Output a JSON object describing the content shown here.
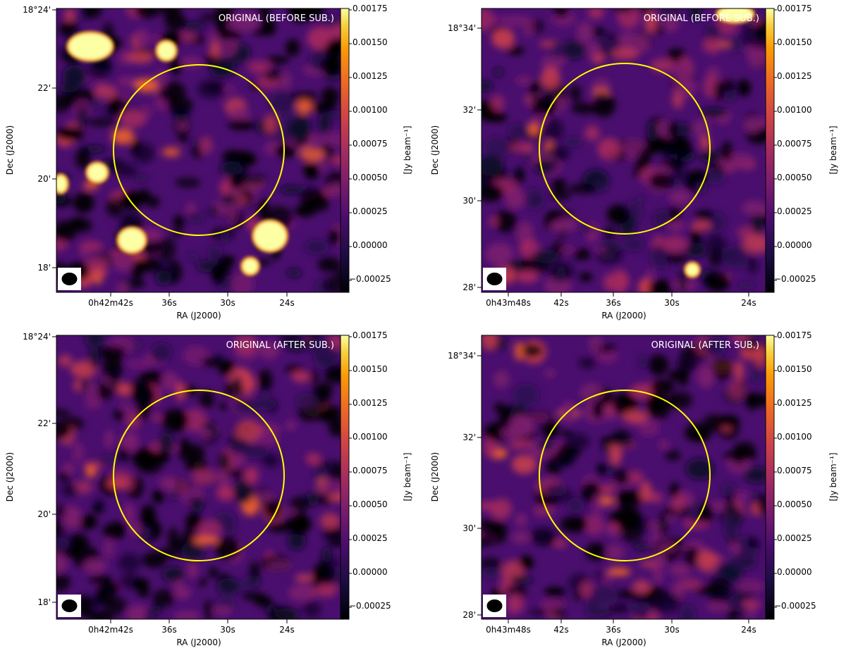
{
  "chart_data": [
    {
      "type": "heatmap",
      "label": "ORIGINAL (BEFORE SUB.)",
      "xlabel": "RA (J2000)",
      "ylabel": "Dec (J2000)",
      "x_ticks": [
        "0h42m42s",
        "36s",
        "30s",
        "24s"
      ],
      "y_ticks": [
        "18°24'",
        "22'",
        "20'",
        "18'"
      ],
      "colorbar": {
        "label": "[Jy beam⁻¹]",
        "range": [
          -0.00035,
          0.00175
        ],
        "ticks": [
          "0.00175",
          "0.00150",
          "0.00125",
          "0.00100",
          "0.00075",
          "0.00050",
          "0.00025",
          "0.00000",
          "−0.00025"
        ]
      },
      "colormap": "inferno",
      "circle_color": "#ffff00",
      "beam": "ellipse",
      "bright_sources": 7
    },
    {
      "type": "heatmap",
      "label": "ORIGINAL (BEFORE SUB.)",
      "xlabel": "RA (J2000)",
      "ylabel": "Dec (J2000)",
      "x_ticks": [
        "0h43m48s",
        "42s",
        "36s",
        "30s",
        "24s"
      ],
      "y_ticks": [
        "18°34'",
        "32'",
        "30'",
        "28'"
      ],
      "colorbar": {
        "label": "[Jy beam⁻¹]",
        "range": [
          -0.00035,
          0.00175
        ],
        "ticks": [
          "0.00175",
          "0.00150",
          "0.00125",
          "0.00100",
          "0.00075",
          "0.00050",
          "0.00025",
          "0.00000",
          "−0.00025"
        ]
      },
      "colormap": "inferno",
      "circle_color": "#ffff00",
      "beam": "ellipse",
      "bright_sources": 2
    },
    {
      "type": "heatmap",
      "label": "ORIGINAL (AFTER SUB.)",
      "xlabel": "RA (J2000)",
      "ylabel": "Dec (J2000)",
      "x_ticks": [
        "0h42m42s",
        "36s",
        "30s",
        "24s"
      ],
      "y_ticks": [
        "18°24'",
        "22'",
        "20'",
        "18'"
      ],
      "colorbar": {
        "label": "[Jy beam⁻¹]",
        "range": [
          -0.00035,
          0.00175
        ],
        "ticks": [
          "0.00175",
          "0.00150",
          "0.00125",
          "0.00100",
          "0.00075",
          "0.00050",
          "0.00025",
          "0.00000",
          "−0.00025"
        ]
      },
      "colormap": "inferno",
      "circle_color": "#ffff00",
      "beam": "ellipse",
      "bright_sources": 0
    },
    {
      "type": "heatmap",
      "label": "ORIGINAL (AFTER SUB.)",
      "xlabel": "RA (J2000)",
      "ylabel": "Dec (J2000)",
      "x_ticks": [
        "0h43m48s",
        "42s",
        "36s",
        "30s",
        "24s"
      ],
      "y_ticks": [
        "18°34'",
        "32'",
        "30'",
        "28'"
      ],
      "colorbar": {
        "label": "[Jy beam⁻¹]",
        "range": [
          -0.00035,
          0.00175
        ],
        "ticks": [
          "0.00175",
          "0.00150",
          "0.00125",
          "0.00100",
          "0.00075",
          "0.00050",
          "0.00025",
          "0.00000",
          "−0.00025"
        ]
      },
      "colormap": "inferno",
      "circle_color": "#ffff00",
      "beam": "ellipse",
      "bright_sources": 0
    }
  ]
}
